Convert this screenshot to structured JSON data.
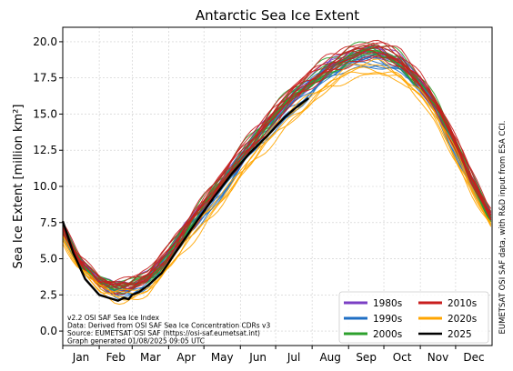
{
  "chart_data": {
    "type": "line",
    "title": "Antarctic Sea Ice Extent",
    "xlabel": "",
    "ylabel": "Sea Ice Extent [million km²]",
    "ylim": [
      -1.0,
      21.0
    ],
    "yticks": [
      "0.0",
      "2.5",
      "5.0",
      "7.5",
      "10.0",
      "12.5",
      "15.0",
      "17.5",
      "20.0"
    ],
    "months": [
      "Jan",
      "Feb",
      "Mar",
      "Apr",
      "May",
      "Jun",
      "Jul",
      "Aug",
      "Sep",
      "Oct",
      "Nov",
      "Dec"
    ],
    "grid": true,
    "legend_position": "lower-right",
    "legend": [
      {
        "label": "1980s",
        "color": "#7b3fc4"
      },
      {
        "label": "2010s",
        "color": "#c81e1e"
      },
      {
        "label": "1990s",
        "color": "#1f6fc4"
      },
      {
        "label": "2020s",
        "color": "#ffa500"
      },
      {
        "label": "2000s",
        "color": "#2ca02c"
      },
      {
        "label": "2025",
        "color": "#000000"
      }
    ],
    "climatology_day_of_year": [
      1,
      15,
      32,
      46,
      55,
      60,
      74,
      91,
      105,
      121,
      135,
      152,
      166,
      182,
      196,
      213,
      227,
      244,
      258,
      267,
      274,
      288,
      305,
      319,
      335,
      349,
      365
    ],
    "climatology_extent": [
      6.8,
      4.7,
      3.2,
      2.8,
      2.8,
      2.9,
      3.5,
      5.0,
      6.6,
      8.3,
      9.8,
      11.6,
      13.0,
      14.5,
      15.8,
      16.9,
      17.8,
      18.5,
      18.9,
      19.0,
      18.8,
      18.3,
      16.8,
      15.2,
      12.6,
      10.2,
      7.7
    ],
    "series": [
      {
        "name": "2025",
        "color": "#000000",
        "day_of_year": [
          1,
          10,
          20,
          32,
          40,
          48,
          53,
          57,
          60,
          66,
          74,
          85,
          100,
          115,
          130,
          145,
          160,
          175,
          190,
          200,
          205,
          210
        ],
        "extent": [
          7.6,
          5.4,
          3.6,
          2.5,
          2.3,
          2.1,
          2.3,
          2.2,
          2.5,
          2.7,
          3.2,
          4.0,
          5.8,
          7.6,
          9.3,
          10.9,
          12.3,
          13.5,
          14.8,
          15.5,
          15.8,
          16.1
        ]
      }
    ],
    "decade_styles": [
      {
        "decade": "1980s",
        "color": "#7b3fc4",
        "count": 7
      },
      {
        "decade": "1990s",
        "color": "#1f6fc4",
        "count": 10
      },
      {
        "decade": "2000s",
        "color": "#2ca02c",
        "count": 10
      },
      {
        "decade": "2010s",
        "color": "#c81e1e",
        "count": 10
      },
      {
        "decade": "2020s",
        "color": "#ffa500",
        "count": 5
      }
    ],
    "notes": [
      "v2.2 OSI SAF Sea Ice Index",
      "Data: Derived from OSI SAF Sea Ice Concentration CDRs v3",
      "Source: EUMETSAT OSI SAF (https://osi-saf.eumetsat.int)",
      "Graph generated 01/08/2025 09:05 UTC"
    ],
    "credit": "EUMETSAT OSI SAF data, with R&D input from ESA CCI."
  }
}
